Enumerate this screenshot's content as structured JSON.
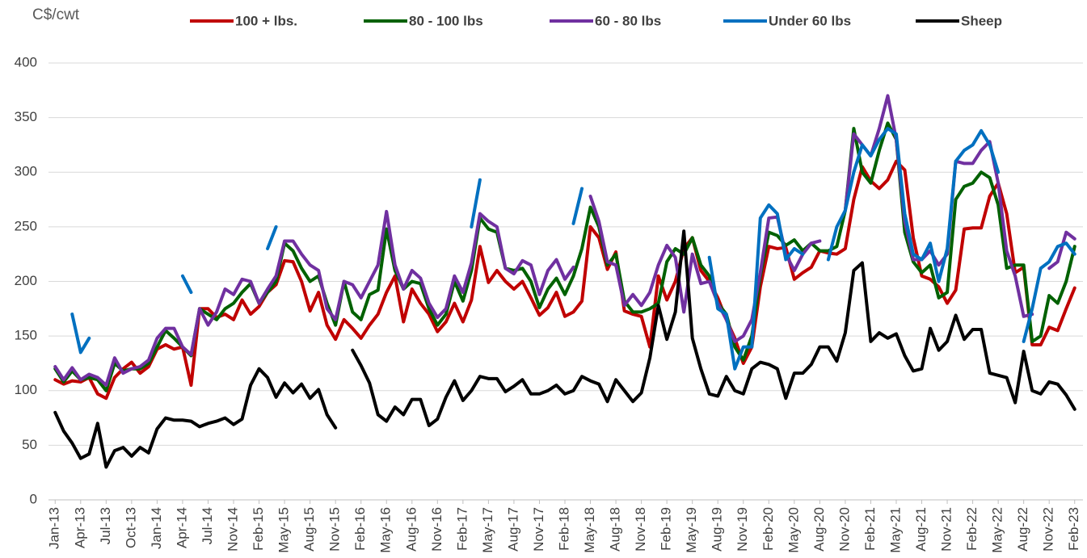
{
  "chart_data": {
    "type": "line",
    "y_axis_label": "C$/cwt",
    "categories": [
      "Jan-13",
      null,
      null,
      "Apr-13",
      null,
      null,
      "Jul-13",
      null,
      null,
      "Oct-13",
      null,
      null,
      "Jan-14",
      null,
      null,
      "Apr-14",
      null,
      null,
      "Jul-14",
      null,
      null,
      "Nov-14",
      null,
      null,
      "Feb-15",
      null,
      null,
      "May-15",
      null,
      null,
      "Aug-15",
      null,
      null,
      "Nov-15",
      null,
      null,
      "Feb-16",
      null,
      null,
      "May-16",
      null,
      null,
      "Aug-16",
      null,
      null,
      "Nov-16",
      null,
      null,
      "Feb-17",
      null,
      null,
      "May-17",
      null,
      null,
      "Aug-17",
      null,
      null,
      "Nov-17",
      null,
      null,
      "Feb-18",
      null,
      null,
      "May-18",
      null,
      null,
      "Aug-18",
      null,
      null,
      "Nov-18",
      null,
      null,
      "Feb-19",
      null,
      null,
      "May-19",
      null,
      null,
      "Aug-19",
      null,
      null,
      "Nov-19",
      null,
      null,
      "Feb-20",
      null,
      null,
      "May-20",
      null,
      null,
      "Aug-20",
      null,
      null,
      "Nov-20",
      null,
      null,
      "Feb-21",
      null,
      null,
      "May-21",
      null,
      null,
      "Aug-21",
      null,
      null,
      "Nov-21",
      null,
      null,
      "Feb-22",
      null,
      null,
      "May-22",
      null,
      null,
      "Aug-22",
      null,
      null,
      "Nov-22",
      null,
      null,
      "Feb-23"
    ],
    "series": [
      {
        "name": "100 + lbs.",
        "color": "#c00000",
        "values": [
          110,
          106,
          109,
          108,
          112,
          97,
          93,
          112,
          120,
          126,
          116,
          122,
          138,
          142,
          138,
          140,
          105,
          175,
          175,
          167,
          170,
          165,
          183,
          170,
          177,
          190,
          197,
          219,
          218,
          200,
          173,
          190,
          160,
          147,
          165,
          157,
          148,
          160,
          170,
          190,
          205,
          163,
          193,
          180,
          170,
          154,
          163,
          180,
          163,
          183,
          232,
          199,
          210,
          200,
          193,
          200,
          185,
          169,
          176,
          190,
          168,
          172,
          182,
          250,
          240,
          211,
          227,
          173,
          170,
          168,
          140,
          205,
          183,
          200,
          230,
          240,
          210,
          200,
          185,
          165,
          148,
          125,
          140,
          195,
          232,
          230,
          231,
          202,
          208,
          213,
          228,
          226,
          225,
          230,
          275,
          305,
          292,
          285,
          293,
          310,
          302,
          240,
          205,
          202,
          195,
          180,
          192,
          248,
          249,
          249,
          278,
          290,
          262,
          208,
          213,
          142,
          142,
          158,
          155,
          175,
          194
        ]
      },
      {
        "name": "80 - 100 lbs",
        "color": "#006100",
        "values": [
          120,
          108,
          118,
          110,
          112,
          110,
          100,
          125,
          118,
          120,
          120,
          125,
          140,
          155,
          148,
          140,
          132,
          175,
          170,
          165,
          175,
          180,
          190,
          198,
          180,
          190,
          200,
          235,
          228,
          212,
          200,
          205,
          180,
          160,
          200,
          172,
          165,
          188,
          192,
          248,
          210,
          193,
          200,
          198,
          175,
          160,
          170,
          200,
          182,
          210,
          258,
          248,
          245,
          212,
          210,
          212,
          200,
          176,
          193,
          203,
          188,
          205,
          230,
          268,
          250,
          215,
          225,
          182,
          172,
          172,
          175,
          180,
          218,
          230,
          225,
          240,
          215,
          205,
          180,
          170,
          140,
          128,
          150,
          205,
          245,
          242,
          233,
          238,
          228,
          235,
          228,
          228,
          232,
          265,
          340,
          300,
          290,
          320,
          345,
          330,
          245,
          218,
          208,
          215,
          185,
          190,
          275,
          287,
          290,
          300,
          295,
          270,
          212,
          215,
          215,
          145,
          150,
          187,
          180,
          200,
          232
        ]
      },
      {
        "name": "60 - 80 lbs",
        "color": "#7030a0",
        "values": [
          122,
          110,
          121,
          110,
          115,
          112,
          105,
          130,
          116,
          120,
          122,
          128,
          148,
          157,
          157,
          140,
          133,
          175,
          160,
          172,
          193,
          188,
          202,
          200,
          180,
          193,
          205,
          237,
          237,
          225,
          215,
          210,
          175,
          165,
          200,
          197,
          185,
          200,
          215,
          264,
          215,
          193,
          210,
          203,
          180,
          167,
          175,
          205,
          190,
          217,
          262,
          255,
          250,
          212,
          207,
          219,
          215,
          188,
          210,
          220,
          202,
          213,
          null,
          278,
          255,
          218,
          215,
          178,
          188,
          178,
          190,
          215,
          233,
          222,
          172,
          225,
          198,
          200,
          180,
          165,
          145,
          150,
          165,
          208,
          258,
          259,
          225,
          210,
          225,
          235,
          237,
          null,
          null,
          265,
          335,
          325,
          315,
          340,
          370,
          330,
          255,
          220,
          220,
          228,
          215,
          225,
          310,
          308,
          308,
          320,
          328,
          290,
          228,
          205,
          168,
          170,
          null,
          212,
          218,
          245,
          239
        ]
      },
      {
        "name": "Under 60 lbs",
        "color": "#0070c0",
        "values": [
          null,
          null,
          170,
          135,
          148,
          null,
          null,
          null,
          null,
          null,
          null,
          null,
          null,
          null,
          null,
          205,
          190,
          null,
          null,
          null,
          null,
          null,
          null,
          null,
          null,
          230,
          250,
          null,
          null,
          null,
          null,
          null,
          null,
          null,
          null,
          null,
          null,
          null,
          null,
          null,
          null,
          null,
          null,
          null,
          null,
          null,
          null,
          null,
          null,
          250,
          293,
          null,
          null,
          null,
          null,
          null,
          null,
          null,
          null,
          null,
          null,
          253,
          285,
          null,
          null,
          null,
          null,
          null,
          null,
          null,
          null,
          null,
          null,
          null,
          null,
          null,
          null,
          222,
          175,
          170,
          120,
          140,
          140,
          258,
          270,
          262,
          220,
          230,
          225,
          null,
          null,
          220,
          250,
          265,
          300,
          325,
          315,
          330,
          340,
          335,
          262,
          225,
          220,
          235,
          200,
          230,
          310,
          320,
          325,
          338,
          325,
          300,
          null,
          null,
          145,
          175,
          212,
          218,
          232,
          235,
          225
        ]
      },
      {
        "name": "Sheep",
        "color": "#000000",
        "values": [
          80,
          63,
          52,
          38,
          42,
          70,
          30,
          45,
          48,
          40,
          48,
          43,
          65,
          75,
          73,
          73,
          72,
          67,
          70,
          72,
          75,
          69,
          74,
          105,
          120,
          112,
          94,
          107,
          98,
          106,
          93,
          101,
          78,
          66,
          null,
          137,
          123,
          107,
          78,
          72,
          85,
          78,
          92,
          92,
          68,
          74,
          94,
          109,
          91,
          100,
          113,
          111,
          111,
          99,
          104,
          110,
          97,
          97,
          100,
          105,
          97,
          100,
          113,
          109,
          106,
          90,
          110,
          100,
          90,
          98,
          130,
          178,
          147,
          172,
          246,
          148,
          120,
          97,
          95,
          113,
          100,
          97,
          120,
          126,
          124,
          120,
          93,
          116,
          116,
          124,
          140,
          140,
          127,
          153,
          210,
          217,
          145,
          153,
          148,
          152,
          132,
          118,
          120,
          157,
          137,
          145,
          169,
          147,
          156,
          156,
          116,
          114,
          112,
          89,
          136,
          100,
          97,
          108,
          106,
          96,
          83
        ]
      }
    ],
    "ylim": [
      0,
      400
    ],
    "yticks": [
      0,
      50,
      100,
      150,
      200,
      250,
      300,
      350,
      400
    ],
    "grid": true,
    "legend": "top"
  }
}
